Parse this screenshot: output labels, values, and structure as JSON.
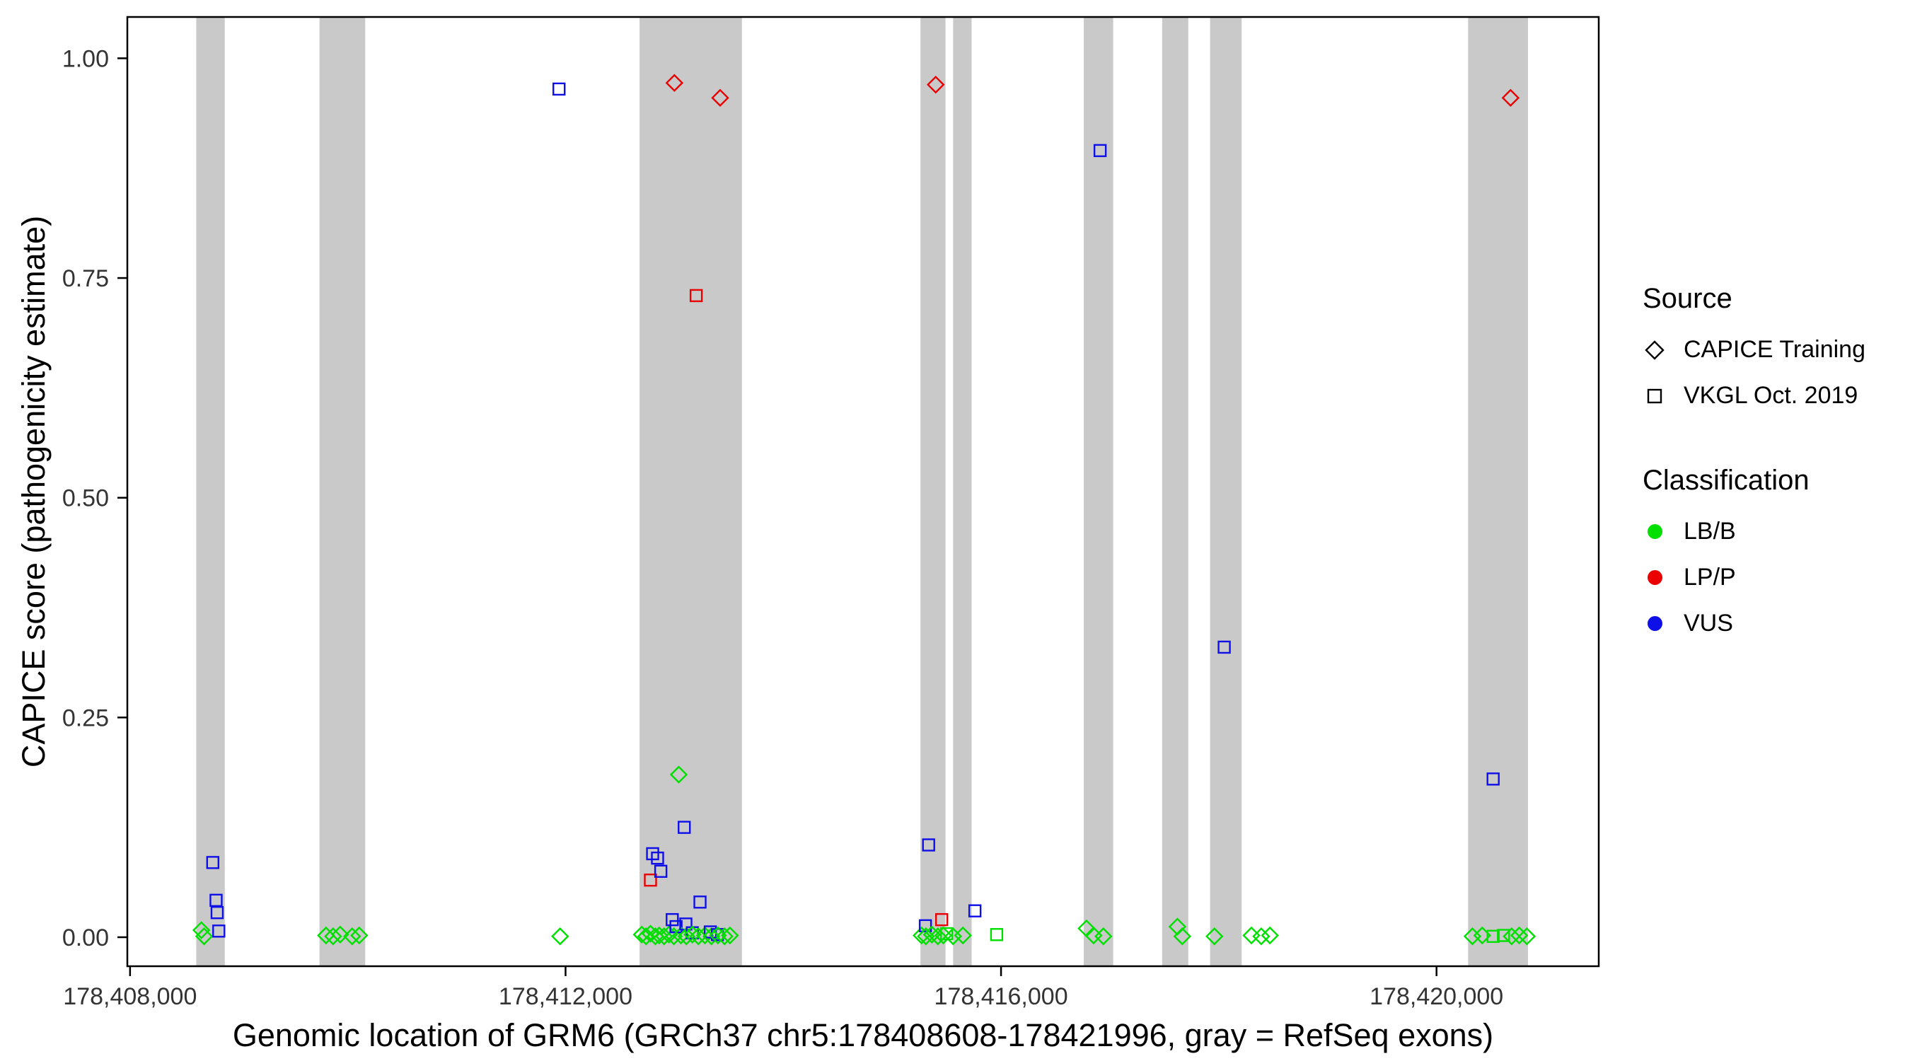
{
  "axes": {
    "x_label": "Genomic location of GRM6 (GRCh37 chr5:178408608-178421996, gray = RefSeq exons)",
    "y_label": "CAPICE score (pathogenicity estimate)",
    "x_ticks": [
      {
        "value": 178408000,
        "label": "178,408,000"
      },
      {
        "value": 178412000,
        "label": "178,412,000"
      },
      {
        "value": 178416000,
        "label": "178,416,000"
      },
      {
        "value": 178420000,
        "label": "178,420,000"
      }
    ],
    "y_ticks": [
      {
        "value": 0.0,
        "label": "0.00"
      },
      {
        "value": 0.25,
        "label": "0.25"
      },
      {
        "value": 0.5,
        "label": "0.50"
      },
      {
        "value": 0.75,
        "label": "0.75"
      },
      {
        "value": 1.0,
        "label": "1.00"
      }
    ]
  },
  "legend": {
    "source": {
      "title": "Source",
      "items": [
        {
          "shape": "diamond",
          "label": "CAPICE Training"
        },
        {
          "shape": "square",
          "label": "VKGL Oct. 2019"
        }
      ]
    },
    "classification": {
      "title": "Classification",
      "items": [
        {
          "label": "LB/B",
          "color_key": "LB/B"
        },
        {
          "label": "LP/P",
          "color_key": "LP/P"
        },
        {
          "label": "VUS",
          "color_key": "VUS"
        }
      ]
    }
  },
  "colors": {
    "LB/B": "#00DF00",
    "LP/P": "#EA0000",
    "VUS": "#0F0FE8",
    "exon": "#C9C9C9",
    "axis_text": "#333333",
    "panel_border": "#000000"
  },
  "chart_data": {
    "type": "scatter",
    "x_domain": [
      178407975,
      178421490
    ],
    "y_domain": [
      -0.033,
      1.047
    ],
    "grid": "off",
    "legend_position": "right",
    "point_fields": [
      "genomic_position",
      "capice_score",
      "shape",
      "classification"
    ],
    "shapes": {
      "d": "CAPICE Training (open diamond)",
      "s": "VKGL Oct. 2019 (open square)"
    },
    "exons": [
      [
        178408608,
        178408870
      ],
      [
        178409740,
        178410160
      ],
      [
        178412680,
        178413620
      ],
      [
        178415260,
        178415490
      ],
      [
        178415560,
        178415730
      ],
      [
        178416760,
        178417030
      ],
      [
        178417480,
        178417720
      ],
      [
        178417920,
        178418210
      ],
      [
        178420290,
        178420840
      ]
    ],
    "points": [
      [
        178408655,
        0.008,
        "d",
        "LB/B"
      ],
      [
        178408680,
        0.001,
        "d",
        "LB/B"
      ],
      [
        178408760,
        0.085,
        "s",
        "VUS"
      ],
      [
        178408790,
        0.042,
        "s",
        "VUS"
      ],
      [
        178408800,
        0.028,
        "s",
        "VUS"
      ],
      [
        178408815,
        0.007,
        "s",
        "VUS"
      ],
      [
        178409800,
        0.002,
        "d",
        "LB/B"
      ],
      [
        178409865,
        0.001,
        "d",
        "LB/B"
      ],
      [
        178409930,
        0.003,
        "d",
        "LB/B"
      ],
      [
        178410040,
        0.001,
        "d",
        "LB/B"
      ],
      [
        178410105,
        0.002,
        "d",
        "LB/B"
      ],
      [
        178411940,
        0.965,
        "s",
        "VUS"
      ],
      [
        178411950,
        0.001,
        "d",
        "LB/B"
      ],
      [
        178412700,
        0.003,
        "d",
        "LB/B"
      ],
      [
        178412740,
        0.001,
        "d",
        "LB/B"
      ],
      [
        178412780,
        0.065,
        "s",
        "LP/P"
      ],
      [
        178412780,
        0.004,
        "d",
        "LB/B"
      ],
      [
        178412800,
        0.095,
        "s",
        "VUS"
      ],
      [
        178412825,
        0.001,
        "d",
        "LB/B"
      ],
      [
        178412845,
        0.09,
        "s",
        "VUS"
      ],
      [
        178412860,
        0.002,
        "d",
        "LB/B"
      ],
      [
        178412875,
        0.075,
        "s",
        "VUS"
      ],
      [
        178412905,
        0.001,
        "d",
        "LB/B"
      ],
      [
        178412950,
        0.003,
        "d",
        "LB/B"
      ],
      [
        178412980,
        0.02,
        "s",
        "VUS"
      ],
      [
        178412995,
        0.001,
        "d",
        "LB/B"
      ],
      [
        178413000,
        0.972,
        "d",
        "LP/P"
      ],
      [
        178413015,
        0.012,
        "s",
        "VUS"
      ],
      [
        178413040,
        0.185,
        "d",
        "LB/B"
      ],
      [
        178413060,
        0.002,
        "d",
        "LB/B"
      ],
      [
        178413090,
        0.125,
        "s",
        "VUS"
      ],
      [
        178413105,
        0.015,
        "s",
        "VUS"
      ],
      [
        178413110,
        0.001,
        "d",
        "LB/B"
      ],
      [
        178413165,
        0.005,
        "s",
        "VUS"
      ],
      [
        178413165,
        0.003,
        "d",
        "LB/B"
      ],
      [
        178413200,
        0.73,
        "s",
        "LP/P"
      ],
      [
        178413220,
        0.001,
        "d",
        "LB/B"
      ],
      [
        178413235,
        0.04,
        "s",
        "VUS"
      ],
      [
        178413280,
        0.002,
        "d",
        "LB/B"
      ],
      [
        178413330,
        0.006,
        "s",
        "VUS"
      ],
      [
        178413340,
        0.001,
        "d",
        "LB/B"
      ],
      [
        178413395,
        0.003,
        "s",
        "VUS"
      ],
      [
        178413400,
        0.002,
        "d",
        "LB/B"
      ],
      [
        178413420,
        0.955,
        "d",
        "LP/P"
      ],
      [
        178413460,
        0.001,
        "d",
        "LB/B"
      ],
      [
        178413510,
        0.002,
        "d",
        "LB/B"
      ],
      [
        178415270,
        0.002,
        "d",
        "LB/B"
      ],
      [
        178415305,
        0.013,
        "s",
        "VUS"
      ],
      [
        178415310,
        0.001,
        "d",
        "LB/B"
      ],
      [
        178415335,
        0.105,
        "s",
        "VUS"
      ],
      [
        178415365,
        0.003,
        "d",
        "LB/B"
      ],
      [
        178415400,
        0.97,
        "d",
        "LP/P"
      ],
      [
        178415420,
        0.001,
        "d",
        "LB/B"
      ],
      [
        178415455,
        0.02,
        "s",
        "LP/P"
      ],
      [
        178415470,
        0.002,
        "d",
        "LB/B"
      ],
      [
        178415500,
        0.004,
        "s",
        "LB/B"
      ],
      [
        178415560,
        0.001,
        "d",
        "LB/B"
      ],
      [
        178415650,
        0.002,
        "d",
        "LB/B"
      ],
      [
        178415760,
        0.03,
        "s",
        "VUS"
      ],
      [
        178415960,
        0.003,
        "s",
        "LB/B"
      ],
      [
        178416785,
        0.01,
        "d",
        "LB/B"
      ],
      [
        178416850,
        0.002,
        "d",
        "LB/B"
      ],
      [
        178416910,
        0.895,
        "s",
        "VUS"
      ],
      [
        178416940,
        0.001,
        "d",
        "LB/B"
      ],
      [
        178417620,
        0.012,
        "d",
        "LB/B"
      ],
      [
        178417665,
        0.001,
        "d",
        "LB/B"
      ],
      [
        178417960,
        0.001,
        "d",
        "LB/B"
      ],
      [
        178418050,
        0.33,
        "s",
        "VUS"
      ],
      [
        178418300,
        0.002,
        "d",
        "LB/B"
      ],
      [
        178418390,
        0.001,
        "d",
        "LB/B"
      ],
      [
        178418470,
        0.002,
        "d",
        "LB/B"
      ],
      [
        178420330,
        0.001,
        "d",
        "LB/B"
      ],
      [
        178420420,
        0.002,
        "d",
        "LB/B"
      ],
      [
        178420520,
        0.18,
        "s",
        "VUS"
      ],
      [
        178420520,
        0.001,
        "s",
        "LB/B"
      ],
      [
        178420615,
        0.002,
        "s",
        "LB/B"
      ],
      [
        178420680,
        0.955,
        "d",
        "LP/P"
      ],
      [
        178420690,
        0.001,
        "d",
        "LB/B"
      ],
      [
        178420760,
        0.002,
        "d",
        "LB/B"
      ],
      [
        178420830,
        0.001,
        "d",
        "LB/B"
      ]
    ]
  }
}
